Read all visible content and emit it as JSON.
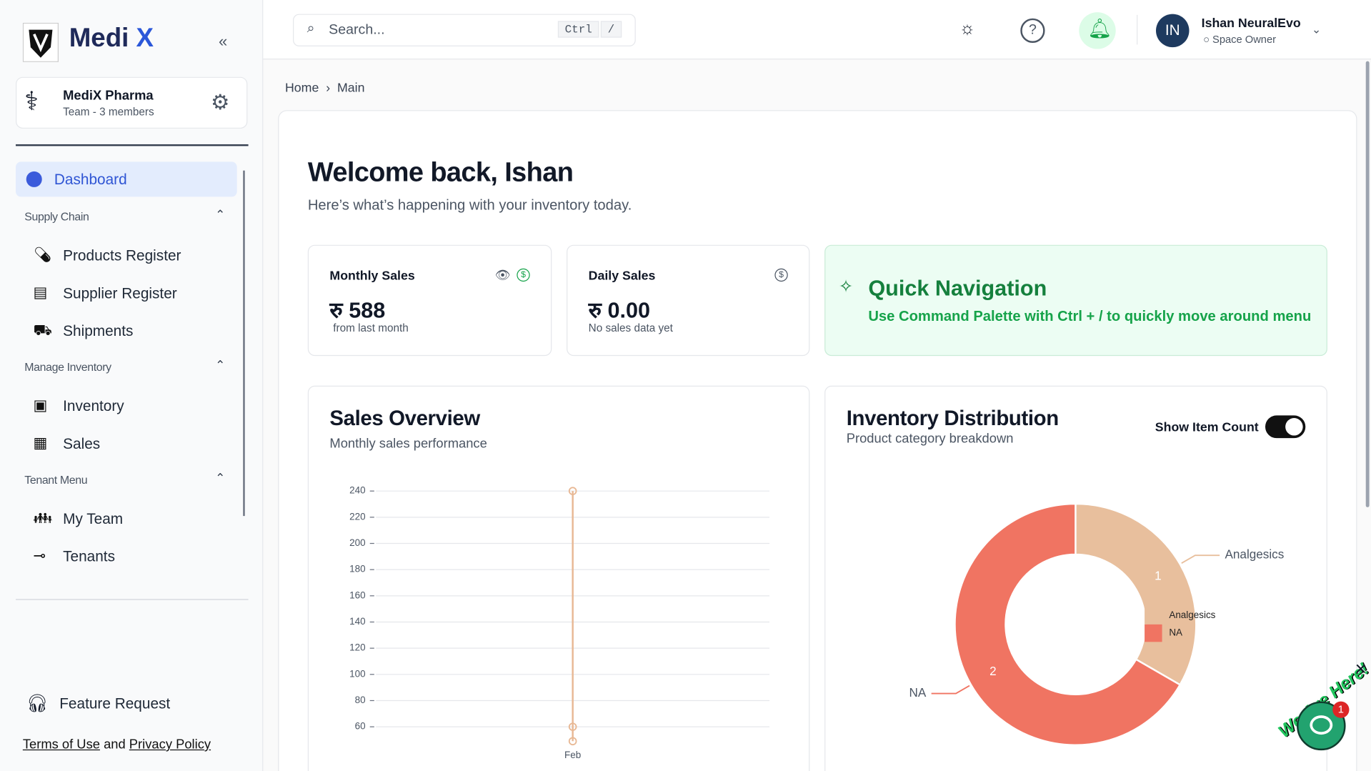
{
  "sidebar": {
    "brand": "Medi",
    "brand_accent": "X",
    "team": {
      "name": "MediX Pharma",
      "members": "Team - 3 members"
    },
    "active_item": "Dashboard",
    "sections": [
      {
        "title": "Supply Chain",
        "items": [
          "Products Register",
          "Supplier Register",
          "Shipments"
        ]
      },
      {
        "title": "Manage Inventory",
        "items": [
          "Inventory",
          "Sales"
        ]
      },
      {
        "title": "Tenant Menu",
        "items": [
          "My Team",
          "Tenants"
        ]
      }
    ],
    "feature_request": "Feature Request",
    "legal": {
      "terms": "Terms of Use",
      "and": "and",
      "privacy": "Privacy Policy"
    }
  },
  "header": {
    "search_placeholder": "Search...",
    "shortcut": [
      "Ctrl",
      "/"
    ],
    "user": {
      "initials": "IN",
      "name": "Ishan NeuralEvo",
      "role": "Space Owner"
    }
  },
  "breadcrumb": [
    "Home",
    "Main"
  ],
  "welcome": {
    "title": "Welcome back, Ishan",
    "subtitle": "Here’s what’s happening with your inventory today."
  },
  "cards": [
    {
      "title": "Monthly Sales",
      "value": "रु 588",
      "note": "from last month"
    },
    {
      "title": "Daily Sales",
      "value": "रु 0.00",
      "note": "No sales data yet"
    }
  ],
  "quick_nav": {
    "title": "Quick Navigation",
    "text": "Use Command Palette with Ctrl + / to quickly move around menu"
  },
  "chart_data": [
    {
      "type": "line",
      "title": "Sales Overview",
      "subtitle": "Monthly sales performance",
      "x": [
        "Feb",
        "Feb",
        "Feb"
      ],
      "values": [
        240,
        60,
        49
      ],
      "color": "#e8b894",
      "ylim": [
        34,
        253
      ],
      "yticks": [
        60,
        80,
        100,
        120,
        140,
        160,
        180,
        200,
        220,
        240
      ],
      "grid": true
    },
    {
      "type": "pie",
      "title": "Inventory Distribution",
      "subtitle": "Product category breakdown",
      "toggle_label": "Show Item Count",
      "toggle_on": true,
      "categories": [
        "Analgesics",
        "NA"
      ],
      "values": [
        1,
        2
      ],
      "colors": [
        "#e8bf9d",
        "#f07462"
      ],
      "donut": true
    }
  ],
  "chat": {
    "tag": "We Are Here!",
    "badge": "1"
  }
}
